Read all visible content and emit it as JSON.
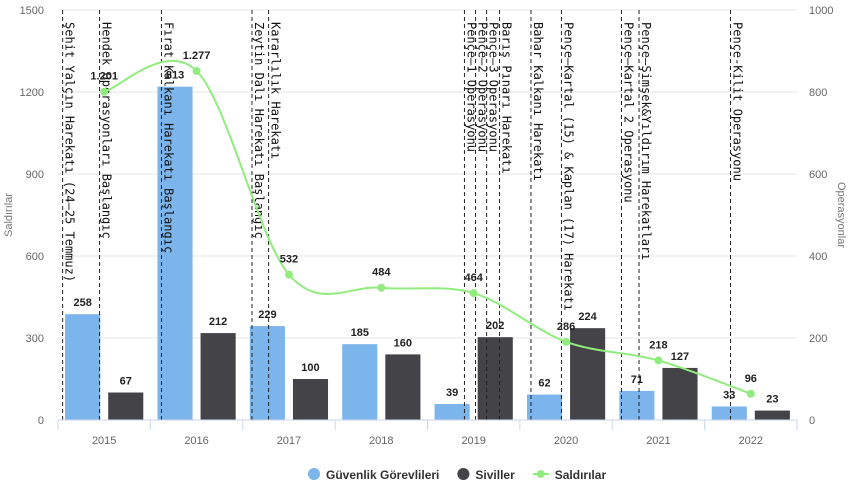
{
  "chart_data": {
    "type": "bar",
    "categories": [
      "2015",
      "2016",
      "2017",
      "2018",
      "2019",
      "2020",
      "2021",
      "2022"
    ],
    "series": [
      {
        "name": "Güvenlik Görevlileri",
        "kind": "bar",
        "axis": "right",
        "color": "#7cb5ec",
        "values": [
          258,
          813,
          229,
          185,
          39,
          62,
          71,
          33
        ]
      },
      {
        "name": "Siviller",
        "kind": "bar",
        "axis": "right",
        "color": "#434348",
        "values": [
          67,
          212,
          100,
          160,
          202,
          224,
          127,
          23
        ]
      },
      {
        "name": "Saldırılar",
        "kind": "line",
        "axis": "left",
        "color": "#90ed7d",
        "values": [
          1201,
          1277,
          532,
          484,
          464,
          286,
          218,
          96
        ]
      }
    ],
    "point_labels": {
      "Saldırılar": [
        "1.201",
        "1.277",
        "532",
        "484",
        "464",
        "286",
        "218",
        "96"
      ]
    },
    "left_axis": {
      "title": "Saldırılar",
      "range": [
        0,
        1500
      ],
      "ticks": [
        "0",
        "300",
        "600",
        "900",
        "1200",
        "1500"
      ]
    },
    "right_axis": {
      "title": "Operasyonlar",
      "range": [
        0,
        1000
      ],
      "ticks": [
        "0",
        "200",
        "400",
        "600",
        "800",
        "1000"
      ]
    },
    "grid": true,
    "legend_position": "bottom-center",
    "events": [
      {
        "label": "Şehit Yalçın Harekatı (24–25 Temmuz)",
        "x": 0.05
      },
      {
        "label": "Hendek Operasyonları Başlangıç",
        "x": 0.45
      },
      {
        "label": "Fırat Kalkanı Harekatı Başlangıç",
        "x": 1.12
      },
      {
        "label": "Zeytin Dalı Harekatı Başlangıç",
        "x": 2.1
      },
      {
        "label": "Kararlılık Harekatı",
        "x": 2.28
      },
      {
        "label": "Pençe–1 Operasyonu",
        "x": 4.4
      },
      {
        "label": "Pençe–2 Operasyonu",
        "x": 4.52
      },
      {
        "label": "Pençe–3 Operasyonu",
        "x": 4.64
      },
      {
        "label": "Barış Pınarı Harekatı",
        "x": 4.78
      },
      {
        "label": "Bahar Kalkanı Harekatı",
        "x": 5.12
      },
      {
        "label": "Pençe–Kartal (15) & Kaplan (17) Harekatı",
        "x": 5.45
      },
      {
        "label": "Pençe–Kartal 2 Operasyonu",
        "x": 6.1
      },
      {
        "label": "Pençe–Şimşek&Yıldırım Harekatları",
        "x": 6.29
      },
      {
        "label": "Pençe-Kilit Operasyonu",
        "x": 7.28
      }
    ]
  }
}
